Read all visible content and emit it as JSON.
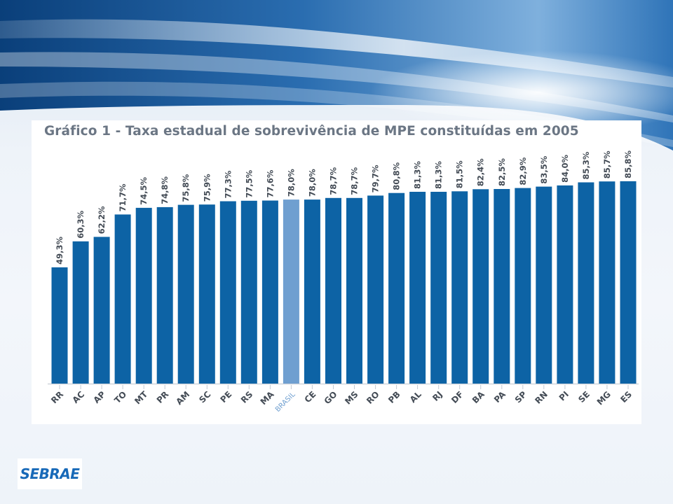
{
  "chart_data": {
    "type": "bar",
    "title": "Gráfico 1 - Taxa estadual de sobrevivência de MPE constituídas em 2005",
    "categories": [
      "RR",
      "AC",
      "AP",
      "TO",
      "MT",
      "PR",
      "AM",
      "SC",
      "PE",
      "RS",
      "MA",
      "BRASIL",
      "CE",
      "GO",
      "MS",
      "RO",
      "PB",
      "AL",
      "RJ",
      "DF",
      "BA",
      "PA",
      "SP",
      "RN",
      "PI",
      "SE",
      "MG",
      "ES"
    ],
    "values": [
      49.3,
      60.3,
      62.2,
      71.7,
      74.5,
      74.8,
      75.8,
      75.9,
      77.3,
      77.5,
      77.6,
      78.0,
      78.0,
      78.7,
      78.7,
      79.7,
      80.8,
      81.3,
      81.3,
      81.5,
      82.4,
      82.5,
      82.9,
      83.5,
      84.0,
      85.3,
      85.7,
      85.8
    ],
    "value_labels": [
      "49,3%",
      "60,3%",
      "62,2%",
      "71,7%",
      "74,5%",
      "74,8%",
      "75,8%",
      "75,9%",
      "77,3%",
      "77,5%",
      "77,6%",
      "78,0%",
      "78,0%",
      "78,7%",
      "78,7%",
      "79,7%",
      "80,8%",
      "81,3%",
      "81,3%",
      "81,5%",
      "82,4%",
      "82,5%",
      "82,9%",
      "83,5%",
      "84,0%",
      "85,3%",
      "85,7%",
      "85,8%"
    ],
    "highlight_category": "BRASIL",
    "ylim": [
      0,
      100
    ],
    "xlabel": "",
    "ylabel": "",
    "grid": false,
    "legend": "none",
    "colors": {
      "bar": "#0d63a5",
      "highlight_bar": "#6f9fd0",
      "label_text": "#444c56",
      "highlight_text": "#6f9fd0"
    }
  },
  "brand": {
    "logo_text": "SEBRAE",
    "logo_color": "#1769b8"
  }
}
